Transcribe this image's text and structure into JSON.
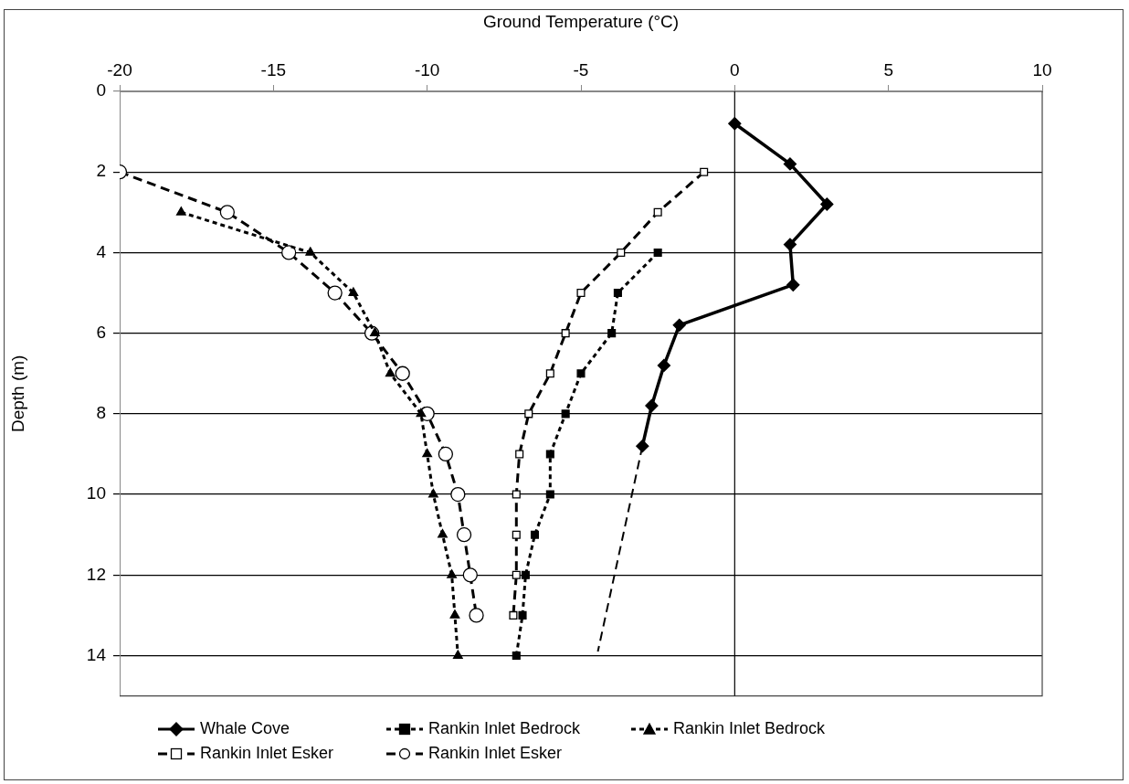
{
  "chart_data": {
    "type": "line",
    "xlabel": "Ground Temperature (°C)",
    "ylabel": "Depth (m)",
    "xlim": [
      -20,
      10
    ],
    "xticks": [
      -20,
      -15,
      -10,
      -5,
      0,
      5,
      10
    ],
    "ylim": [
      15,
      0
    ],
    "yticks": [
      0,
      2,
      4,
      6,
      8,
      10,
      12,
      14
    ],
    "grid": "y",
    "legend": "bottom",
    "ref_lines": [
      {
        "axis": "x",
        "value": 0,
        "color": "#000000"
      }
    ],
    "series": [
      {
        "name": "Whale Cove",
        "color": "#000000",
        "marker": "diamond",
        "line_style": "solid",
        "x": [
          0,
          1.8,
          3,
          1.8,
          1.9,
          -1.8,
          -2.3,
          -2.7,
          -3
        ],
        "values": [
          0.8,
          1.8,
          2.8,
          3.8,
          4.8,
          5.8,
          6.8,
          7.8,
          8.8
        ]
      },
      {
        "name": "Rankin Inlet Bedrock",
        "color": "#000000",
        "marker": "square",
        "line_style": "dotted",
        "x": [
          -2.5,
          -3.8,
          -4,
          -5,
          -5.5,
          -6,
          -6,
          -6.5,
          -6.8,
          -6.9,
          -7.1
        ],
        "values": [
          4,
          5,
          6,
          7,
          8,
          9,
          10,
          11,
          12,
          13,
          14
        ]
      },
      {
        "name": "Rankin Inlet Bedrock",
        "color": "#000000",
        "marker": "triangle",
        "line_style": "dotted",
        "x": [
          -18,
          -13.8,
          -12.4,
          -11.7,
          -11.2,
          -10.2,
          -10,
          -9.8,
          -9.5,
          -9.2,
          -9.1,
          -9
        ],
        "values": [
          3,
          4,
          5,
          6,
          7,
          8,
          9,
          10,
          11,
          12,
          13,
          14
        ]
      },
      {
        "name": "Rankin Inlet Esker",
        "color": "#000000",
        "marker": "square",
        "line_style": "dashed",
        "x": [
          -1,
          -2.5,
          -3.7,
          -5,
          -5.5,
          -6,
          -6.7,
          -7,
          -7.1,
          -7.1,
          -7.1,
          -7.2
        ],
        "values": [
          2,
          3,
          4,
          5,
          6,
          7,
          8,
          9,
          10,
          11,
          12,
          13
        ]
      },
      {
        "name": "Rankin Inlet Esker",
        "color": "#000000",
        "marker": "circle",
        "line_style": "dashed",
        "x": [
          -20,
          -16.5,
          -14.5,
          -13,
          -11.8,
          -10.8,
          -10,
          -9.4,
          -9,
          -8.8,
          -8.6,
          -8.4
        ],
        "values": [
          2,
          3,
          4,
          5,
          6,
          7,
          8,
          9,
          10,
          11,
          12,
          13
        ]
      },
      {
        "color": "#000000",
        "marker": "none",
        "line_style": "dashed",
        "x": [
          -3,
          -4.45
        ],
        "values": [
          8.8,
          13.9
        ]
      }
    ]
  }
}
